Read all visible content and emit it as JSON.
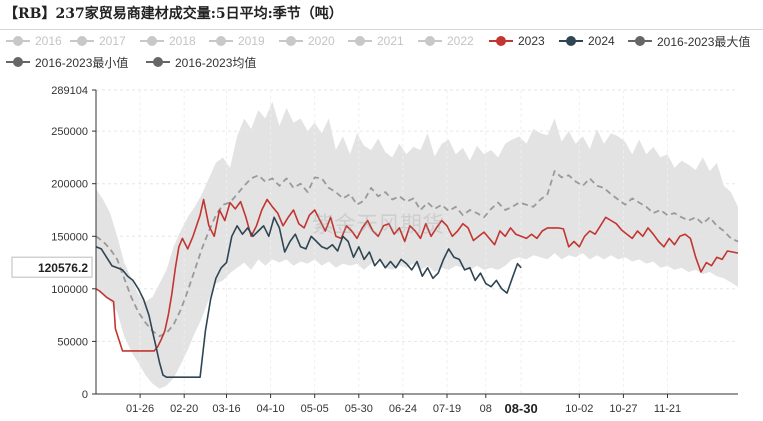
{
  "chart_data": {
    "type": "line",
    "title": "【RB】237家贸易商建材成交量:5日平均:季节（吨）",
    "watermark": "紫金天风期货",
    "ylim": [
      0,
      289104
    ],
    "yticks": [
      0,
      50000,
      100000,
      150000,
      200000,
      250000,
      289104
    ],
    "ytick_labels": [
      "0",
      "50000",
      "100000",
      "150000",
      "200000",
      "250000",
      "289104"
    ],
    "x_day_range": [
      1,
      365
    ],
    "xtick_labels": [
      "01-26",
      "02-20",
      "03-16",
      "04-10",
      "05-05",
      "05-30",
      "06-24",
      "07-19",
      "08",
      "08-30",
      "10-02",
      "10-27",
      "11-21"
    ],
    "xtick_days": [
      26,
      51,
      75,
      100,
      125,
      150,
      175,
      200,
      222,
      242,
      275,
      300,
      325
    ],
    "pointer_value_label": "120576.2",
    "pointer_value": 120576.2,
    "pointer_date_label": "08-30",
    "legend": [
      {
        "name": "2016",
        "color": "#c8c8c8",
        "active": false
      },
      {
        "name": "2017",
        "color": "#c8c8c8",
        "active": false
      },
      {
        "name": "2018",
        "color": "#c8c8c8",
        "active": false
      },
      {
        "name": "2019",
        "color": "#c8c8c8",
        "active": false
      },
      {
        "name": "2020",
        "color": "#c8c8c8",
        "active": false
      },
      {
        "name": "2021",
        "color": "#c8c8c8",
        "active": false
      },
      {
        "name": "2022",
        "color": "#c8c8c8",
        "active": false
      },
      {
        "name": "2023",
        "color": "#c23531",
        "active": true
      },
      {
        "name": "2024",
        "color": "#2f4554",
        "active": true
      },
      {
        "name": "2016-2023最大值",
        "color": "#666666",
        "active": true
      },
      {
        "name": "2016-2023最小值",
        "color": "#666666",
        "active": true
      },
      {
        "name": "2016-2023均值",
        "color": "#666666",
        "active": true
      }
    ],
    "band": {
      "color": "#e3e3e3",
      "day": [
        1,
        5,
        9,
        13,
        17,
        21,
        25,
        29,
        33,
        37,
        41,
        45,
        49,
        53,
        57,
        61,
        65,
        69,
        73,
        77,
        81,
        85,
        89,
        93,
        97,
        101,
        105,
        109,
        113,
        117,
        121,
        125,
        129,
        133,
        137,
        141,
        145,
        149,
        153,
        157,
        161,
        165,
        169,
        173,
        177,
        181,
        185,
        189,
        193,
        197,
        201,
        205,
        209,
        213,
        217,
        221,
        225,
        229,
        233,
        237,
        241,
        245,
        249,
        253,
        257,
        261,
        265,
        269,
        273,
        277,
        281,
        285,
        289,
        293,
        297,
        301,
        305,
        309,
        313,
        317,
        321,
        325,
        329,
        333,
        337,
        341,
        345,
        349,
        353,
        357,
        361,
        365
      ],
      "max": [
        195000,
        185000,
        172000,
        150000,
        125000,
        110000,
        95000,
        88000,
        92000,
        105000,
        118000,
        140000,
        155000,
        168000,
        178000,
        190000,
        205000,
        220000,
        225000,
        215000,
        245000,
        262000,
        252000,
        270000,
        262000,
        278000,
        255000,
        272000,
        258000,
        262000,
        250000,
        258000,
        248000,
        262000,
        232000,
        245000,
        228000,
        248000,
        236000,
        232000,
        243000,
        230000,
        225000,
        238000,
        228000,
        235000,
        232000,
        248000,
        226000,
        238000,
        242000,
        228000,
        234000,
        222000,
        236000,
        228000,
        232000,
        225000,
        238000,
        242000,
        245000,
        238000,
        252000,
        248000,
        246000,
        262000,
        240000,
        250000,
        238000,
        245000,
        233000,
        252000,
        238000,
        248000,
        245000,
        240000,
        228000,
        242000,
        228000,
        235000,
        225000,
        228000,
        215000,
        222000,
        218000,
        213000,
        225000,
        212000,
        220000,
        198000,
        192000,
        178000
      ],
      "min": [
        102000,
        95000,
        88000,
        78000,
        55000,
        40000,
        30000,
        18000,
        10000,
        5000,
        8000,
        15000,
        28000,
        42000,
        58000,
        72000,
        90000,
        105000,
        108000,
        115000,
        120000,
        125000,
        118000,
        128000,
        122000,
        128000,
        125000,
        128000,
        122000,
        126000,
        124000,
        128000,
        122000,
        126000,
        120000,
        124000,
        122000,
        124000,
        118000,
        124000,
        128000,
        120000,
        118000,
        122000,
        120000,
        124000,
        118000,
        122000,
        116000,
        120000,
        118000,
        122000,
        120000,
        118000,
        122000,
        118000,
        120000,
        118000,
        122000,
        128000,
        130000,
        128000,
        132000,
        130000,
        128000,
        134000,
        128000,
        132000,
        130000,
        134000,
        128000,
        132000,
        128000,
        132000,
        128000,
        130000,
        126000,
        128000,
        124000,
        126000,
        120000,
        122000,
        118000,
        120000,
        116000,
        118000,
        114000,
        116000,
        112000,
        110000,
        106000,
        102000
      ]
    },
    "series": [
      {
        "name": "2016-2023均值",
        "color": "#9a9a9a",
        "style": "dashed",
        "day": [
          1,
          5,
          9,
          13,
          17,
          21,
          25,
          29,
          33,
          37,
          41,
          45,
          49,
          53,
          57,
          61,
          65,
          69,
          73,
          77,
          81,
          85,
          89,
          93,
          97,
          101,
          105,
          109,
          113,
          117,
          121,
          125,
          129,
          133,
          137,
          141,
          145,
          149,
          153,
          157,
          161,
          165,
          169,
          173,
          177,
          181,
          185,
          189,
          193,
          197,
          201,
          205,
          209,
          213,
          217,
          221,
          225,
          229,
          233,
          237,
          241,
          245,
          249,
          253,
          257,
          261,
          265,
          269,
          273,
          277,
          281,
          285,
          289,
          293,
          297,
          301,
          305,
          309,
          313,
          317,
          321,
          325,
          329,
          333,
          337,
          341,
          345,
          349,
          353,
          357,
          361,
          365
        ],
        "values": [
          150000,
          145000,
          138000,
          128000,
          110000,
          92000,
          78000,
          68000,
          60000,
          55000,
          58000,
          66000,
          80000,
          98000,
          118000,
          138000,
          155000,
          170000,
          180000,
          182000,
          190000,
          198000,
          205000,
          208000,
          202000,
          205000,
          198000,
          205000,
          196000,
          200000,
          192000,
          206000,
          205000,
          196000,
          192000,
          186000,
          190000,
          180000,
          184000,
          196000,
          188000,
          192000,
          185000,
          188000,
          183000,
          186000,
          175000,
          182000,
          176000,
          180000,
          174000,
          178000,
          170000,
          175000,
          172000,
          168000,
          176000,
          182000,
          175000,
          178000,
          182000,
          180000,
          178000,
          185000,
          190000,
          212000,
          206000,
          208000,
          202000,
          198000,
          205000,
          198000,
          196000,
          190000,
          185000,
          180000,
          186000,
          182000,
          178000,
          172000,
          175000,
          170000,
          172000,
          168000,
          165000,
          168000,
          162000,
          168000,
          160000,
          155000,
          148000,
          145000
        ]
      },
      {
        "name": "2023",
        "color": "#c23531",
        "style": "solid",
        "day": [
          1,
          3,
          5,
          7,
          9,
          11,
          12,
          16,
          20,
          24,
          28,
          30,
          32,
          34,
          36,
          38,
          40,
          42,
          44,
          46,
          48,
          50,
          53,
          56,
          60,
          62,
          65,
          68,
          71,
          74,
          77,
          80,
          83,
          86,
          89,
          92,
          95,
          98,
          101,
          104,
          107,
          110,
          113,
          116,
          119,
          122,
          125,
          128,
          131,
          134,
          137,
          140,
          143,
          146,
          149,
          152,
          155,
          158,
          161,
          164,
          167,
          170,
          173,
          176,
          179,
          182,
          185,
          188,
          191,
          194,
          197,
          200,
          203,
          206,
          209,
          212,
          215,
          218,
          221,
          224,
          227,
          230,
          233,
          236,
          239,
          242,
          245,
          248,
          251,
          254,
          257,
          260,
          263,
          266,
          269,
          272,
          275,
          278,
          281,
          284,
          287,
          290,
          293,
          296,
          299,
          302,
          305,
          308,
          311,
          314,
          317,
          320,
          323,
          326,
          329,
          332,
          335,
          338,
          341,
          344,
          347,
          350,
          353,
          356,
          359,
          362,
          365
        ],
        "values": [
          100000,
          98000,
          95000,
          92000,
          90000,
          88000,
          62000,
          41000,
          41000,
          41000,
          41000,
          41000,
          41000,
          41000,
          45000,
          52000,
          60000,
          75000,
          95000,
          120000,
          140000,
          148000,
          138000,
          150000,
          170000,
          185000,
          160000,
          150000,
          175000,
          165000,
          182000,
          176000,
          183000,
          168000,
          150000,
          160000,
          175000,
          185000,
          178000,
          172000,
          160000,
          168000,
          175000,
          162000,
          158000,
          170000,
          175000,
          165000,
          155000,
          168000,
          150000,
          148000,
          160000,
          155000,
          148000,
          158000,
          165000,
          155000,
          150000,
          160000,
          162000,
          152000,
          158000,
          145000,
          160000,
          155000,
          148000,
          162000,
          150000,
          158000,
          165000,
          160000,
          150000,
          155000,
          162000,
          158000,
          146000,
          150000,
          154000,
          148000,
          142000,
          155000,
          150000,
          158000,
          152000,
          150000,
          148000,
          152000,
          148000,
          155000,
          158000,
          158000,
          158000,
          157000,
          140000,
          145000,
          140000,
          150000,
          155000,
          152000,
          160000,
          168000,
          165000,
          162000,
          156000,
          152000,
          148000,
          155000,
          150000,
          158000,
          152000,
          145000,
          140000,
          148000,
          142000,
          150000,
          152000,
          148000,
          130000,
          116000,
          125000,
          122000,
          130000,
          128000,
          136000,
          135000,
          134000
        ]
      },
      {
        "name": "2024",
        "color": "#2f4554",
        "style": "solid",
        "day": [
          1,
          4,
          7,
          10,
          13,
          16,
          19,
          22,
          25,
          28,
          31,
          33,
          35,
          37,
          39,
          41,
          43,
          45,
          47,
          49,
          51,
          53,
          55,
          57,
          60,
          63,
          66,
          69,
          72,
          75,
          78,
          81,
          84,
          87,
          90,
          93,
          96,
          99,
          102,
          105,
          108,
          111,
          114,
          117,
          120,
          123,
          126,
          129,
          132,
          135,
          138,
          141,
          144,
          147,
          150,
          153,
          156,
          159,
          162,
          165,
          168,
          171,
          174,
          177,
          180,
          183,
          186,
          189,
          192,
          195,
          198,
          201,
          204,
          207,
          210,
          213,
          216,
          219,
          222,
          225,
          228,
          231,
          234,
          237,
          240,
          242
        ],
        "values": [
          140000,
          138000,
          130000,
          122000,
          120000,
          118000,
          112000,
          108000,
          100000,
          90000,
          75000,
          60000,
          45000,
          30000,
          18000,
          16000,
          16000,
          16000,
          16000,
          16000,
          16000,
          16000,
          16000,
          16000,
          16000,
          60000,
          90000,
          110000,
          120000,
          125000,
          150000,
          160000,
          152000,
          158000,
          150000,
          155000,
          160000,
          150000,
          168000,
          158000,
          135000,
          145000,
          152000,
          140000,
          138000,
          150000,
          145000,
          140000,
          138000,
          142000,
          136000,
          150000,
          145000,
          130000,
          140000,
          128000,
          135000,
          122000,
          128000,
          120000,
          126000,
          120000,
          128000,
          124000,
          118000,
          126000,
          112000,
          120000,
          110000,
          115000,
          128000,
          138000,
          130000,
          128000,
          118000,
          120000,
          108000,
          115000,
          105000,
          102000,
          108000,
          100000,
          96000,
          110000,
          124000,
          120000
        ]
      }
    ]
  }
}
